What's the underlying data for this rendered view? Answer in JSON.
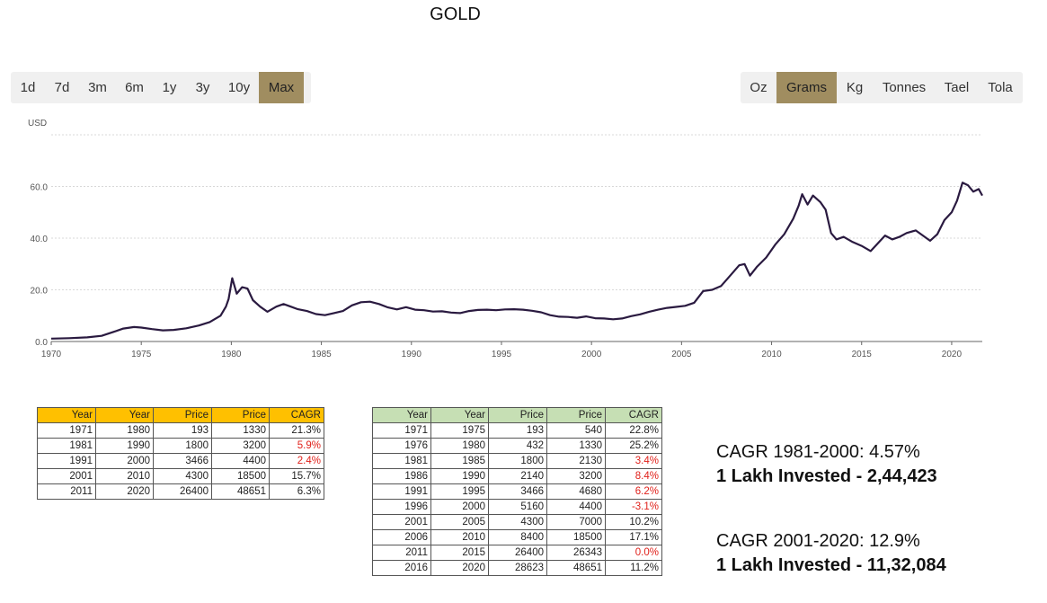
{
  "title": "GOLD",
  "period_buttons": [
    {
      "label": "1d",
      "active": false
    },
    {
      "label": "7d",
      "active": false
    },
    {
      "label": "3m",
      "active": false
    },
    {
      "label": "6m",
      "active": false
    },
    {
      "label": "1y",
      "active": false
    },
    {
      "label": "3y",
      "active": false
    },
    {
      "label": "10y",
      "active": false
    },
    {
      "label": "Max",
      "active": true
    }
  ],
  "unit_buttons": [
    {
      "label": "Oz",
      "active": false
    },
    {
      "label": "Grams",
      "active": true
    },
    {
      "label": "Kg",
      "active": false
    },
    {
      "label": "Tonnes",
      "active": false
    },
    {
      "label": "Tael",
      "active": false
    },
    {
      "label": "Tola",
      "active": false
    }
  ],
  "colors": {
    "accent": "#a08d60",
    "line": "#2a1a40",
    "table1_header": "#ffc000",
    "table2_header": "#c6dfb4",
    "negative_text": "#e0201a"
  },
  "chart_data": {
    "type": "line",
    "ylabel": "USD",
    "xlim": [
      1970,
      2021.7
    ],
    "ylim": [
      0,
      80
    ],
    "x_ticks": [
      1970,
      1975,
      1980,
      1985,
      1990,
      1995,
      2000,
      2005,
      2010,
      2015,
      2020
    ],
    "y_ticks": [
      "0.0",
      "20.0",
      "40.0",
      "60.0"
    ],
    "y_tick_values": [
      0,
      20,
      40,
      60
    ],
    "grid": true,
    "series": [
      {
        "x": [
          1970,
          1971,
          1972,
          1972.8,
          1973.5,
          1974,
          1974.6,
          1975,
          1975.6,
          1976.2,
          1976.8,
          1977.5,
          1978.2,
          1978.8,
          1979.4,
          1979.7,
          1979.85,
          1980.05,
          1980.3,
          1980.6,
          1980.9,
          1981.2,
          1981.6,
          1982.0,
          1982.5,
          1982.9,
          1983.3,
          1983.7,
          1984.2,
          1984.7,
          1985.2,
          1985.7,
          1986.2,
          1986.7,
          1987.2,
          1987.7,
          1988.2,
          1988.7,
          1989.2,
          1989.7,
          1990.2,
          1990.7,
          1991.2,
          1991.7,
          1992.2,
          1992.7,
          1993.2,
          1993.7,
          1994.2,
          1994.7,
          1995.2,
          1995.7,
          1996.2,
          1996.7,
          1997.2,
          1997.7,
          1998.2,
          1998.7,
          1999.2,
          1999.7,
          2000.2,
          2000.7,
          2001.2,
          2001.7,
          2002.2,
          2002.7,
          2003.2,
          2003.7,
          2004.2,
          2004.7,
          2005.2,
          2005.7,
          2006.2,
          2006.7,
          2007.2,
          2007.7,
          2008.2,
          2008.5,
          2008.8,
          2009.2,
          2009.7,
          2010.2,
          2010.7,
          2011.2,
          2011.5,
          2011.7,
          2012.0,
          2012.3,
          2012.7,
          2013.0,
          2013.3,
          2013.6,
          2014.0,
          2014.5,
          2015.0,
          2015.5,
          2015.9,
          2016.3,
          2016.7,
          2017.1,
          2017.5,
          2018.0,
          2018.4,
          2018.8,
          2019.2,
          2019.6,
          2020.0,
          2020.3,
          2020.6,
          2020.9,
          2021.2,
          2021.5,
          2021.7
        ],
        "values": [
          1.1,
          1.3,
          1.6,
          2.2,
          3.8,
          5.0,
          5.6,
          5.4,
          4.8,
          4.3,
          4.5,
          5.1,
          6.2,
          7.5,
          10.0,
          13.5,
          16.5,
          24.5,
          18.5,
          21.0,
          20.5,
          16.0,
          13.5,
          11.5,
          13.5,
          14.5,
          13.5,
          12.5,
          11.8,
          10.6,
          10.2,
          11.0,
          11.8,
          14.0,
          15.2,
          15.4,
          14.5,
          13.2,
          12.4,
          13.3,
          12.3,
          12.1,
          11.6,
          11.7,
          11.2,
          11.0,
          11.8,
          12.2,
          12.3,
          12.1,
          12.4,
          12.5,
          12.3,
          11.9,
          11.3,
          10.2,
          9.6,
          9.5,
          9.2,
          9.7,
          9.0,
          8.9,
          8.6,
          8.9,
          9.8,
          10.5,
          11.5,
          12.3,
          13.0,
          13.4,
          13.8,
          15.0,
          19.5,
          20.0,
          21.5,
          25.5,
          29.5,
          30.0,
          25.5,
          29.0,
          32.5,
          37.5,
          41.5,
          47.5,
          52.5,
          57.0,
          53.0,
          56.5,
          54.0,
          51.0,
          42.0,
          39.5,
          40.5,
          38.5,
          37.0,
          35.0,
          38.0,
          41.0,
          39.5,
          40.5,
          42.0,
          43.0,
          41.0,
          39.0,
          41.5,
          47.0,
          50.0,
          54.5,
          61.5,
          60.5,
          58.0,
          59.0,
          56.5
        ]
      }
    ]
  },
  "table1": {
    "headers": [
      "Year",
      "Year",
      "Price",
      "Price",
      "CAGR"
    ],
    "rows": [
      [
        {
          "v": "1971"
        },
        {
          "v": "1980"
        },
        {
          "v": "193"
        },
        {
          "v": "1330"
        },
        {
          "v": "21.3%"
        }
      ],
      [
        {
          "v": "1981"
        },
        {
          "v": "1990"
        },
        {
          "v": "1800"
        },
        {
          "v": "3200"
        },
        {
          "v": "5.9%",
          "neg": true
        }
      ],
      [
        {
          "v": "1991"
        },
        {
          "v": "2000"
        },
        {
          "v": "3466"
        },
        {
          "v": "4400"
        },
        {
          "v": "2.4%",
          "neg": true
        }
      ],
      [
        {
          "v": "2001"
        },
        {
          "v": "2010"
        },
        {
          "v": "4300"
        },
        {
          "v": "18500"
        },
        {
          "v": "15.7%"
        }
      ],
      [
        {
          "v": "2011"
        },
        {
          "v": "2020"
        },
        {
          "v": "26400"
        },
        {
          "v": "48651"
        },
        {
          "v": "6.3%"
        }
      ]
    ]
  },
  "table2": {
    "headers": [
      "Year",
      "Year",
      "Price",
      "Price",
      "CAGR"
    ],
    "rows": [
      [
        {
          "v": "1971"
        },
        {
          "v": "1975"
        },
        {
          "v": "193"
        },
        {
          "v": "540"
        },
        {
          "v": "22.8%"
        }
      ],
      [
        {
          "v": "1976"
        },
        {
          "v": "1980"
        },
        {
          "v": "432"
        },
        {
          "v": "1330"
        },
        {
          "v": "25.2%"
        }
      ],
      [
        {
          "v": "1981"
        },
        {
          "v": "1985"
        },
        {
          "v": "1800"
        },
        {
          "v": "2130"
        },
        {
          "v": "3.4%",
          "neg": true
        }
      ],
      [
        {
          "v": "1986"
        },
        {
          "v": "1990"
        },
        {
          "v": "2140"
        },
        {
          "v": "3200"
        },
        {
          "v": "8.4%",
          "neg": true
        }
      ],
      [
        {
          "v": "1991"
        },
        {
          "v": "1995"
        },
        {
          "v": "3466"
        },
        {
          "v": "4680"
        },
        {
          "v": "6.2%",
          "neg": true
        }
      ],
      [
        {
          "v": "1996"
        },
        {
          "v": "2000"
        },
        {
          "v": "5160"
        },
        {
          "v": "4400"
        },
        {
          "v": "-3.1%",
          "neg": true
        }
      ],
      [
        {
          "v": "2001"
        },
        {
          "v": "2005"
        },
        {
          "v": "4300"
        },
        {
          "v": "7000"
        },
        {
          "v": "10.2%"
        }
      ],
      [
        {
          "v": "2006"
        },
        {
          "v": "2010"
        },
        {
          "v": "8400"
        },
        {
          "v": "18500"
        },
        {
          "v": "17.1%"
        }
      ],
      [
        {
          "v": "2011"
        },
        {
          "v": "2015"
        },
        {
          "v": "26400"
        },
        {
          "v": "26343"
        },
        {
          "v": "0.0%",
          "neg": true
        }
      ],
      [
        {
          "v": "2016"
        },
        {
          "v": "2020"
        },
        {
          "v": "28623"
        },
        {
          "v": "48651"
        },
        {
          "v": "11.2%"
        }
      ]
    ]
  },
  "summary": [
    {
      "cagr": "CAGR 1981-2000: 4.57%",
      "invested": "1 Lakh Invested - 2,44,423"
    },
    {
      "cagr": "CAGR 2001-2020: 12.9%",
      "invested": "1 Lakh Invested - 11,32,084"
    }
  ]
}
